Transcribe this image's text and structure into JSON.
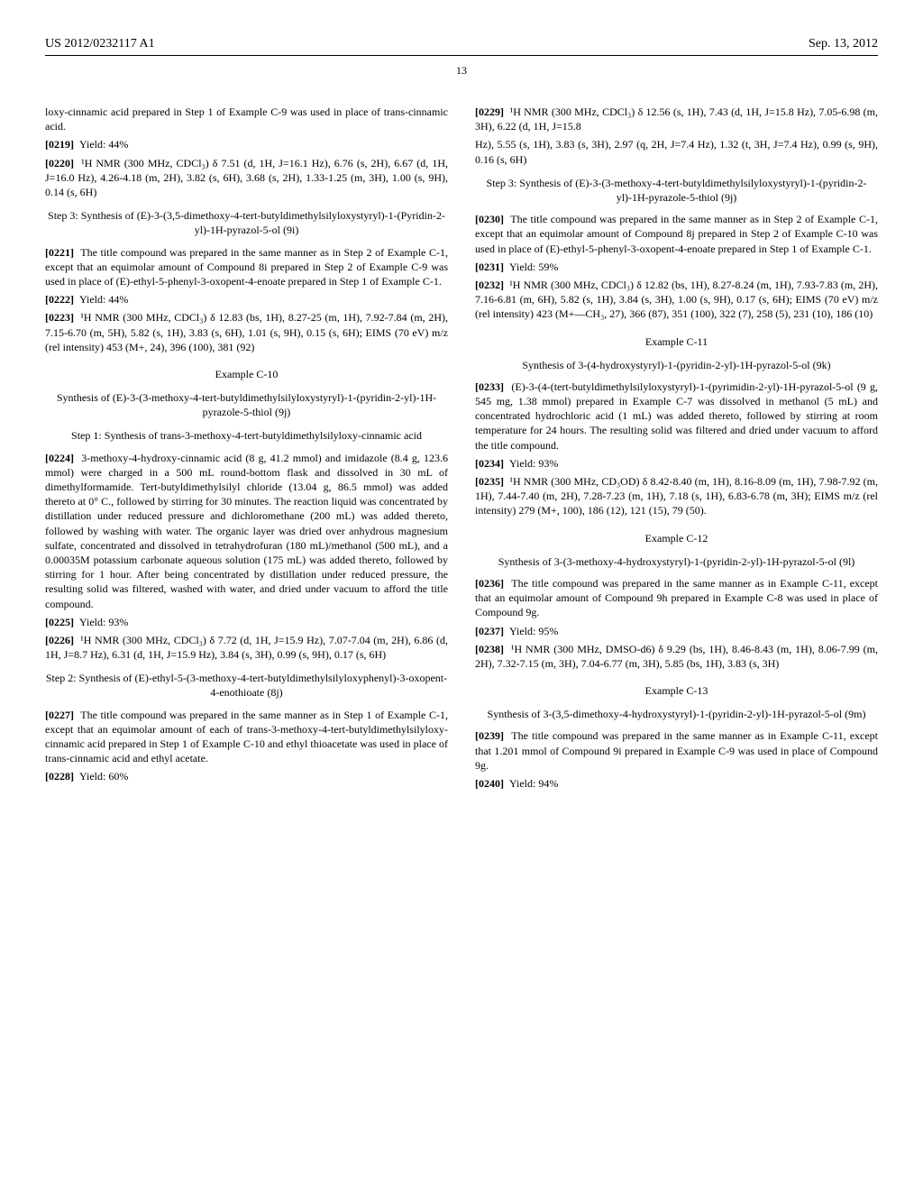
{
  "header": {
    "pubno": "US 2012/0232117 A1",
    "date": "Sep. 13, 2012"
  },
  "pagenum": "13",
  "left": {
    "p0218b": "loxy-cinnamic acid prepared in Step 1 of Example C-9 was used in place of trans-cinnamic acid.",
    "p0219_label": "[0219]",
    "p0219": "Yield: 44%",
    "p0220_label": "[0220]",
    "p0220": "¹H NMR (300 MHz, CDCl₃) δ 7.51 (d, 1H, J=16.1 Hz), 6.76 (s, 2H), 6.67 (d, 1H, J=16.0 Hz), 4.26-4.18 (m, 2H), 3.82 (s, 6H), 3.68 (s, 2H), 1.33-1.25 (m, 3H), 1.00 (s, 9H), 0.14 (s, 6H)",
    "step3_9i": "Step 3: Synthesis of (E)-3-(3,5-dimethoxy-4-tert-butyldimethylsilyloxystyryl)-1-(Pyridin-2-yl)-1H-pyrazol-5-ol (9i)",
    "p0221_label": "[0221]",
    "p0221": "The title compound was prepared in the same manner as in Step 2 of Example C-1, except that an equimolar amount of Compound 8i prepared in Step 2 of Example C-9 was used in place of (E)-ethyl-5-phenyl-3-oxopent-4-enoate prepared in Step 1 of Example C-1.",
    "p0222_label": "[0222]",
    "p0222": "Yield: 44%",
    "p0223_label": "[0223]",
    "p0223": "¹H NMR (300 MHz, CDCl₃) δ 12.83 (bs, 1H), 8.27-25 (m, 1H), 7.92-7.84 (m, 2H), 7.15-6.70 (m, 5H), 5.82 (s, 1H), 3.83 (s, 6H), 1.01 (s, 9H), 0.15 (s, 6H); EIMS (70 eV) m/z (rel intensity) 453 (M+, 24), 396 (100), 381 (92)",
    "exC10": "Example C-10",
    "exC10_title": "Synthesis of (E)-3-(3-methoxy-4-tert-butyldimethylsilyloxystyryl)-1-(pyridin-2-yl)-1H-pyrazole-5-thiol (9j)",
    "step1_9j": "Step 1: Synthesis of trans-3-methoxy-4-tert-butyldimethylsilyloxy-cinnamic acid",
    "p0224_label": "[0224]",
    "p0224": "3-methoxy-4-hydroxy-cinnamic acid (8 g, 41.2 mmol) and imidazole (8.4 g, 123.6 mmol) were charged in a 500 mL round-bottom flask and dissolved in 30 mL of dimethylformamide. Tert-butyldimethylsilyl chloride (13.04 g, 86.5 mmol) was added thereto at 0° C., followed by stirring for 30 minutes. The reaction liquid was concentrated by distillation under reduced pressure and dichloromethane (200 mL) was added thereto, followed by washing with water. The organic layer was dried over anhydrous magnesium sulfate, concentrated and dissolved in tetrahydrofuran (180 mL)/methanol (500 mL), and a 0.00035M potassium carbonate aqueous solution (175 mL) was added thereto, followed by stirring for 1 hour. After being concentrated by distillation under reduced pressure, the resulting solid was filtered, washed with water, and dried under vacuum to afford the title compound.",
    "p0225_label": "[0225]",
    "p0225": "Yield: 93%",
    "p0226_label": "[0226]",
    "p0226": "¹H NMR (300 MHz, CDCl₃) δ 7.72 (d, 1H, J=15.9 Hz), 7.07-7.04 (m, 2H), 6.86 (d, 1H, J=8.7 Hz), 6.31 (d, 1H, J=15.9 Hz), 3.84 (s, 3H), 0.99 (s, 9H), 0.17 (s, 6H)",
    "step2_8j": "Step 2: Synthesis of (E)-ethyl-5-(3-methoxy-4-tert-butyldimethylsilyloxyphenyl)-3-oxopent-4-enothioate (8j)",
    "p0227_label": "[0227]",
    "p0227": "The title compound was prepared in the same manner as in Step 1 of Example C-1, except that an equimolar amount of each of trans-3-methoxy-4-tert-butyldimethylsilyloxy-cinnamic acid prepared in Step 1 of Example C-10 and ethyl thioacetate was used in place of trans-cinnamic acid and ethyl acetate.",
    "p0228_label": "[0228]",
    "p0228": "Yield: 60%",
    "p0229_label": "[0229]",
    "p0229": "¹H NMR (300 MHz, CDCl₃) δ 12.56 (s, 1H), 7.43 (d, 1H, J=15.8 Hz), 7.05-6.98 (m, 3H), 6.22 (d, 1H, J=15.8"
  },
  "right": {
    "p0229b": "Hz), 5.55 (s, 1H), 3.83 (s, 3H), 2.97 (q, 2H, J=7.4 Hz), 1.32 (t, 3H, J=7.4 Hz), 0.99 (s, 9H), 0.16 (s, 6H)",
    "step3_9j": "Step 3: Synthesis of (E)-3-(3-methoxy-4-tert-butyldimethylsilyloxystyryl)-1-(pyridin-2-yl)-1H-pyrazole-5-thiol (9j)",
    "p0230_label": "[0230]",
    "p0230": "The title compound was prepared in the same manner as in Step 2 of Example C-1, except that an equimolar amount of Compound 8j prepared in Step 2 of Example C-10 was used in place of (E)-ethyl-5-phenyl-3-oxopent-4-enoate prepared in Step 1 of Example C-1.",
    "p0231_label": "[0231]",
    "p0231": "Yield: 59%",
    "p0232_label": "[0232]",
    "p0232": "¹H NMR (300 MHz, CDCl₃) δ 12.82 (bs, 1H), 8.27-8.24 (m, 1H), 7.93-7.83 (m, 2H), 7.16-6.81 (m, 6H), 5.82 (s, 1H), 3.84 (s, 3H), 1.00 (s, 9H), 0.17 (s, 6H); EIMS (70 eV) m/z (rel intensity) 423 (M+—CH₃, 27), 366 (87), 351 (100), 322 (7), 258 (5), 231 (10), 186 (10)",
    "exC11": "Example C-11",
    "exC11_title": "Synthesis of 3-(4-hydroxystyryl)-1-(pyridin-2-yl)-1H-pyrazol-5-ol (9k)",
    "p0233_label": "[0233]",
    "p0233": "(E)-3-(4-(tert-butyldimethylsilyloxystyryl)-1-(pyrimidin-2-yl)-1H-pyrazol-5-ol (9 g, 545 mg, 1.38 mmol) prepared in Example C-7 was dissolved in methanol (5 mL) and concentrated hydrochloric acid (1 mL) was added thereto, followed by stirring at room temperature for 24 hours. The resulting solid was filtered and dried under vacuum to afford the title compound.",
    "p0234_label": "[0234]",
    "p0234": "Yield: 93%",
    "p0235_label": "[0235]",
    "p0235": "¹H NMR (300 MHz, CD₃OD) δ 8.42-8.40 (m, 1H), 8.16-8.09 (m, 1H), 7.98-7.92 (m, 1H), 7.44-7.40 (m, 2H), 7.28-7.23 (m, 1H), 7.18 (s, 1H), 6.83-6.78 (m, 3H); EIMS m/z (rel intensity) 279 (M+, 100), 186 (12), 121 (15), 79 (50).",
    "exC12": "Example C-12",
    "exC12_title": "Synthesis of 3-(3-methoxy-4-hydroxystyryl)-1-(pyridin-2-yl)-1H-pyrazol-5-ol (9l)",
    "p0236_label": "[0236]",
    "p0236": "The title compound was prepared in the same manner as in Example C-11, except that an equimolar amount of Compound 9h prepared in Example C-8 was used in place of Compound 9g.",
    "p0237_label": "[0237]",
    "p0237": "Yield: 95%",
    "p0238_label": "[0238]",
    "p0238": "¹H NMR (300 MHz, DMSO-d6) δ 9.29 (bs, 1H), 8.46-8.43 (m, 1H), 8.06-7.99 (m, 2H), 7.32-7.15 (m, 3H), 7.04-6.77 (m, 3H), 5.85 (bs, 1H), 3.83 (s, 3H)",
    "exC13": "Example C-13",
    "exC13_title": "Synthesis of 3-(3,5-dimethoxy-4-hydroxystyryl)-1-(pyridin-2-yl)-1H-pyrazol-5-ol (9m)",
    "p0239_label": "[0239]",
    "p0239": "The title compound was prepared in the same manner as in Example C-11, except that 1.201 mmol of Compound 9i prepared in Example C-9 was used in place of Compound 9g.",
    "p0240_label": "[0240]",
    "p0240": "Yield: 94%"
  }
}
